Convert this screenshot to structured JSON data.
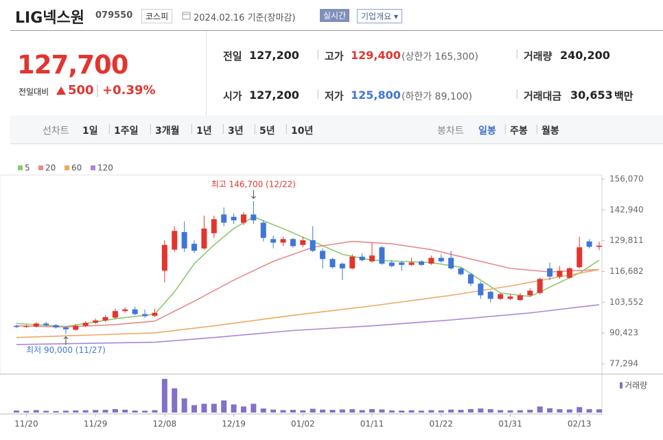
{
  "header": {
    "name": "LIG넥스원",
    "code": "079550",
    "market": "코스피",
    "date": "2024.02.16 기준(장마감)",
    "realtime": "실시간",
    "overview": "기업개요"
  },
  "quote": {
    "price": "127,700",
    "change_label": "전일대비",
    "change": "500",
    "rate": "+0.39%",
    "rows": [
      [
        {
          "label": "전일",
          "value": "127,200"
        },
        {
          "label": "고가",
          "value": "129,400",
          "note": "(상한가 165,300)"
        },
        {
          "label": "거래량",
          "value": "240,200"
        }
      ],
      [
        {
          "label": "시가",
          "value": "127,200"
        },
        {
          "label": "저가",
          "value": "125,800",
          "note": "(하한가 89,100)"
        },
        {
          "label": "거래대금",
          "value": "30,653",
          "unit": "백만"
        }
      ]
    ]
  },
  "nav": {
    "line_label": "선차트",
    "line_items": [
      "1일",
      "1주일",
      "3개월",
      "1년",
      "3년",
      "5년",
      "10년"
    ],
    "candle_label": "봉차트",
    "candle_items": [
      "일봉",
      "주봉",
      "월봉"
    ],
    "active": "일봉"
  },
  "chart_data": {
    "type": "candlestick",
    "categories": [
      null,
      "11/20",
      null,
      null,
      null,
      null,
      null,
      null,
      "11/29",
      null,
      null,
      null,
      null,
      null,
      null,
      "12/08",
      null,
      null,
      null,
      null,
      null,
      null,
      "12/19",
      null,
      null,
      null,
      null,
      null,
      null,
      "01/02",
      null,
      null,
      null,
      null,
      null,
      null,
      "01/11",
      null,
      null,
      null,
      null,
      null,
      null,
      "01/22",
      null,
      null,
      null,
      null,
      null,
      null,
      "01/31",
      null,
      null,
      null,
      null,
      null,
      null,
      "02/13",
      null,
      null
    ],
    "open": [
      93500,
      93000,
      93200,
      94500,
      93800,
      92800,
      91800,
      93500,
      94800,
      95800,
      97000,
      99800,
      100500,
      98500,
      97800,
      117000,
      126000,
      133500,
      128500,
      126500,
      133000,
      141000,
      140000,
      137500,
      141000,
      137500,
      130500,
      129000,
      130500,
      128000,
      130000,
      125500,
      122000,
      120000,
      118000,
      123000,
      121000,
      127000,
      120500,
      120500,
      119500,
      121000,
      120000,
      122500,
      122500,
      118000,
      115500,
      111500,
      108000,
      105000,
      105000,
      104500,
      106500,
      107500,
      118000,
      114500,
      114000,
      118500,
      129500,
      127200
    ],
    "high": [
      94000,
      94000,
      95000,
      95200,
      94200,
      93200,
      94200,
      95500,
      96600,
      98000,
      100800,
      101400,
      101600,
      100500,
      100800,
      130000,
      136000,
      138000,
      130000,
      140500,
      140500,
      144000,
      141500,
      142000,
      146700,
      138500,
      132000,
      131500,
      131000,
      131500,
      136000,
      126500,
      122500,
      120500,
      124000,
      124500,
      129000,
      127500,
      121500,
      121000,
      122500,
      121500,
      123500,
      124000,
      125500,
      118500,
      116000,
      112500,
      108500,
      107500,
      107000,
      107500,
      109500,
      114000,
      120500,
      119000,
      118500,
      131500,
      130500,
      129400
    ],
    "low": [
      92500,
      92700,
      92800,
      93300,
      92300,
      90000,
      91500,
      93000,
      94300,
      95300,
      96500,
      99000,
      98000,
      97000,
      97200,
      112000,
      125000,
      125000,
      124500,
      126000,
      131000,
      136000,
      137000,
      136500,
      137000,
      129500,
      126500,
      127500,
      126800,
      127000,
      125000,
      118000,
      118000,
      113000,
      117500,
      121000,
      120500,
      119500,
      118500,
      117000,
      119000,
      119000,
      119500,
      120500,
      117500,
      115000,
      110500,
      105000,
      103500,
      104500,
      104500,
      104000,
      106000,
      107000,
      113000,
      113500,
      113500,
      118000,
      126500,
      125800
    ],
    "close": [
      93000,
      93400,
      94500,
      93800,
      92800,
      92000,
      93500,
      94800,
      95800,
      97200,
      99800,
      100500,
      98500,
      97600,
      99000,
      128000,
      134000,
      126500,
      125500,
      135000,
      139000,
      137500,
      138500,
      141000,
      138500,
      131000,
      129000,
      130500,
      127500,
      130000,
      125500,
      122000,
      118500,
      118000,
      123000,
      121500,
      123500,
      120000,
      119000,
      119500,
      120500,
      119500,
      122500,
      121000,
      118000,
      115500,
      111500,
      106500,
      105000,
      107000,
      106000,
      106500,
      108500,
      113500,
      114500,
      117000,
      118000,
      127000,
      127200,
      127700
    ],
    "up_color": "#e2352f",
    "down_color": "#3f76d8",
    "series": [
      {
        "name": "5",
        "color": "#8cc96b",
        "x": [
          0,
          5,
          10,
          14,
          16,
          18,
          20,
          22,
          24,
          27,
          30,
          33,
          36,
          39,
          42,
          45,
          47,
          49,
          52,
          55,
          57,
          59
        ],
        "values": [
          94500,
          93200,
          96500,
          98500,
          108000,
          120000,
          128000,
          135000,
          140000,
          135000,
          129500,
          124000,
          121500,
          121000,
          120500,
          118500,
          113000,
          107500,
          106000,
          112000,
          116000,
          121500
        ]
      },
      {
        "name": "20",
        "color": "#e9898a",
        "x": [
          0,
          5,
          10,
          14,
          18,
          22,
          26,
          30,
          34,
          38,
          42,
          46,
          50,
          54,
          59
        ],
        "values": [
          93500,
          93000,
          94000,
          95500,
          104000,
          113000,
          121000,
          127000,
          129500,
          128500,
          126000,
          122000,
          118000,
          116500,
          117500
        ]
      },
      {
        "name": "60",
        "color": "#f0a860",
        "x": [
          0,
          14,
          20,
          28,
          36,
          44,
          50,
          59
        ],
        "values": [
          88500,
          90500,
          93500,
          98000,
          102000,
          106500,
          110500,
          117500
        ]
      },
      {
        "name": "120",
        "color": "#a787d8",
        "x": [
          0,
          14,
          20,
          28,
          36,
          44,
          52,
          59
        ],
        "values": [
          85500,
          86500,
          88500,
          91500,
          93500,
          96000,
          99000,
          102500
        ]
      }
    ],
    "ylim": [
      77294,
      156070
    ],
    "yticks": [
      {
        "value": 77294,
        "label": "77,294"
      },
      {
        "value": 90423,
        "label": "90,423"
      },
      {
        "value": 103552,
        "label": "103,552"
      },
      {
        "value": 116682,
        "label": "116,682"
      },
      {
        "value": 129811,
        "label": "129,811"
      },
      {
        "value": 142940,
        "label": "142,940"
      },
      {
        "value": 156070,
        "label": "156,070"
      }
    ],
    "annotations": {
      "high": "최고 146,700 (12/22)",
      "low": "최저 90,000 (11/27)"
    },
    "volume": {
      "name": "거래량",
      "color": "#8470c6",
      "ylim": [
        0,
        2600000
      ],
      "values": [
        150000,
        120000,
        180000,
        130000,
        110000,
        140000,
        160000,
        170000,
        190000,
        200000,
        260000,
        210000,
        150000,
        140000,
        180000,
        2500000,
        1800000,
        1050000,
        550000,
        650000,
        650000,
        900000,
        600000,
        450000,
        650000,
        300000,
        220000,
        180000,
        200000,
        170000,
        280000,
        220000,
        200000,
        230000,
        250000,
        180000,
        260000,
        230000,
        160000,
        150000,
        170000,
        140000,
        180000,
        160000,
        220000,
        200000,
        260000,
        300000,
        250000,
        180000,
        160000,
        170000,
        200000,
        450000,
        320000,
        250000,
        230000,
        400000,
        250000,
        240200
      ]
    }
  }
}
